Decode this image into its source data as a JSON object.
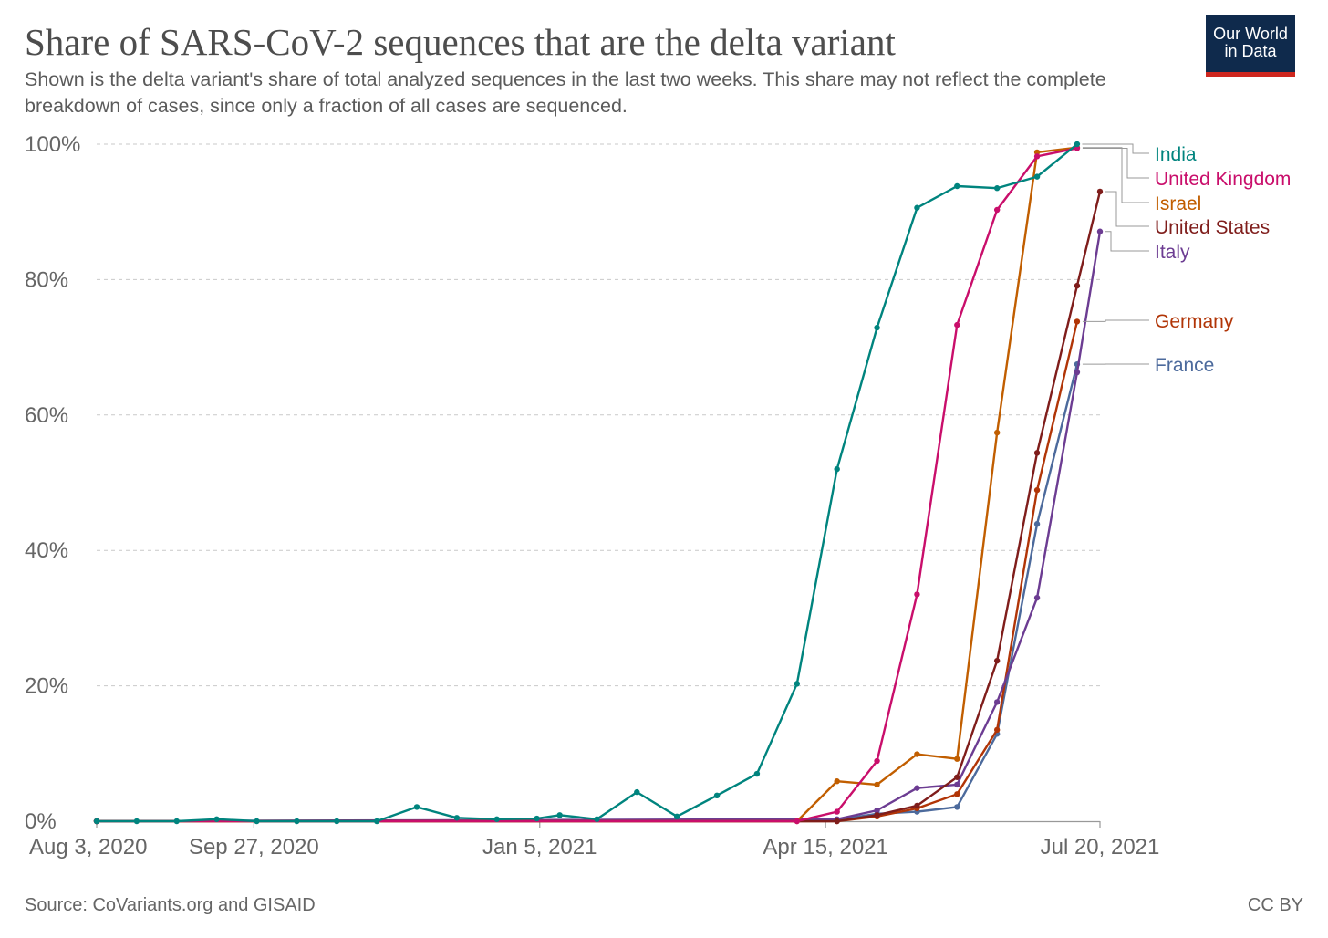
{
  "header": {
    "title": "Share of SARS-CoV-2 sequences that are the delta variant",
    "subtitle": "Shown is the delta variant's share of total analyzed sequences in the last two weeks. This share may not reflect the complete breakdown of cases, since only a fraction of all cases are sequenced.",
    "logo_line1": "Our World",
    "logo_line2": "in Data"
  },
  "footer": {
    "source": "Source: CoVariants.org and GISAID",
    "license": "CC BY"
  },
  "chart_data": {
    "type": "line",
    "title": "Share of SARS-CoV-2 sequences that are the delta variant",
    "xlabel": "",
    "ylabel": "",
    "ylim": [
      0,
      100
    ],
    "y_ticks": [
      0,
      20,
      40,
      60,
      80,
      100
    ],
    "y_tick_labels": [
      "0%",
      "20%",
      "40%",
      "60%",
      "80%",
      "100%"
    ],
    "x_range": [
      "2020-08-03",
      "2021-07-20"
    ],
    "x_ticks": [
      "2020-08-03",
      "2020-09-27",
      "2021-01-05",
      "2021-04-15",
      "2021-07-20"
    ],
    "x_tick_labels": [
      "Aug 3, 2020",
      "Sep 27, 2020",
      "Jan 5, 2021",
      "Apr 15, 2021",
      "Jul 20, 2021"
    ],
    "grid": true,
    "legend_position": "right",
    "series": [
      {
        "name": "India",
        "color": "#00847e",
        "points": [
          [
            "2020-08-03",
            0
          ],
          [
            "2020-08-17",
            0
          ],
          [
            "2020-08-31",
            0
          ],
          [
            "2020-09-14",
            0.3
          ],
          [
            "2020-09-28",
            0
          ],
          [
            "2020-10-12",
            0
          ],
          [
            "2020-10-26",
            0
          ],
          [
            "2020-11-09",
            0
          ],
          [
            "2020-11-23",
            2.1
          ],
          [
            "2020-12-07",
            0.5
          ],
          [
            "2020-12-21",
            0.3
          ],
          [
            "2021-01-04",
            0.4
          ],
          [
            "2021-01-12",
            0.9
          ],
          [
            "2021-01-25",
            0.3
          ],
          [
            "2021-02-08",
            4.3
          ],
          [
            "2021-02-22",
            0.7
          ],
          [
            "2021-03-08",
            3.8
          ],
          [
            "2021-03-22",
            7.0
          ],
          [
            "2021-04-05",
            20.3
          ],
          [
            "2021-04-19",
            52.0
          ],
          [
            "2021-05-03",
            72.9
          ],
          [
            "2021-05-17",
            90.6
          ],
          [
            "2021-05-31",
            93.8
          ],
          [
            "2021-06-14",
            93.5
          ],
          [
            "2021-06-28",
            95.2
          ],
          [
            "2021-07-12",
            100
          ]
        ]
      },
      {
        "name": "United Kingdom",
        "color": "#c90e6b",
        "points": [
          [
            "2020-08-03",
            0
          ],
          [
            "2021-04-05",
            0
          ],
          [
            "2021-04-19",
            1.4
          ],
          [
            "2021-05-03",
            8.9
          ],
          [
            "2021-05-17",
            33.5
          ],
          [
            "2021-05-31",
            73.3
          ],
          [
            "2021-06-14",
            90.3
          ],
          [
            "2021-06-28",
            98.2
          ],
          [
            "2021-07-12",
            99.4
          ]
        ]
      },
      {
        "name": "Israel",
        "color": "#c15e00",
        "points": [
          [
            "2020-08-03",
            0
          ],
          [
            "2021-04-05",
            0
          ],
          [
            "2021-04-19",
            5.9
          ],
          [
            "2021-05-03",
            5.4
          ],
          [
            "2021-05-17",
            9.9
          ],
          [
            "2021-05-31",
            9.2
          ],
          [
            "2021-06-14",
            57.4
          ],
          [
            "2021-06-28",
            98.8
          ],
          [
            "2021-07-12",
            99.5
          ]
        ]
      },
      {
        "name": "United States",
        "color": "#7f1d1b",
        "points": [
          [
            "2020-08-03",
            0
          ],
          [
            "2021-04-19",
            0
          ],
          [
            "2021-05-03",
            0.9
          ],
          [
            "2021-05-17",
            2.3
          ],
          [
            "2021-05-31",
            6.5
          ],
          [
            "2021-06-14",
            23.7
          ],
          [
            "2021-06-28",
            54.4
          ],
          [
            "2021-07-12",
            79.1
          ],
          [
            "2021-07-20",
            93.0
          ]
        ]
      },
      {
        "name": "Italy",
        "color": "#6c3c92",
        "points": [
          [
            "2020-08-03",
            0
          ],
          [
            "2021-04-19",
            0.3
          ],
          [
            "2021-05-03",
            1.6
          ],
          [
            "2021-05-17",
            4.9
          ],
          [
            "2021-05-31",
            5.4
          ],
          [
            "2021-06-14",
            17.6
          ],
          [
            "2021-06-28",
            33.0
          ],
          [
            "2021-07-12",
            66.3
          ],
          [
            "2021-07-20",
            87.1
          ]
        ]
      },
      {
        "name": "Germany",
        "color": "#b13507",
        "points": [
          [
            "2020-08-03",
            0
          ],
          [
            "2021-04-19",
            0
          ],
          [
            "2021-05-03",
            0.7
          ],
          [
            "2021-05-17",
            1.9
          ],
          [
            "2021-05-31",
            4.0
          ],
          [
            "2021-06-14",
            13.5
          ],
          [
            "2021-06-28",
            48.9
          ],
          [
            "2021-07-12",
            73.8
          ]
        ]
      },
      {
        "name": "France",
        "color": "#4c6a9c",
        "points": [
          [
            "2020-08-03",
            0
          ],
          [
            "2021-04-19",
            0.2
          ],
          [
            "2021-05-03",
            1.1
          ],
          [
            "2021-05-17",
            1.4
          ],
          [
            "2021-05-31",
            2.1
          ],
          [
            "2021-06-14",
            12.9
          ],
          [
            "2021-06-28",
            43.9
          ],
          [
            "2021-07-12",
            67.5
          ]
        ]
      }
    ]
  }
}
